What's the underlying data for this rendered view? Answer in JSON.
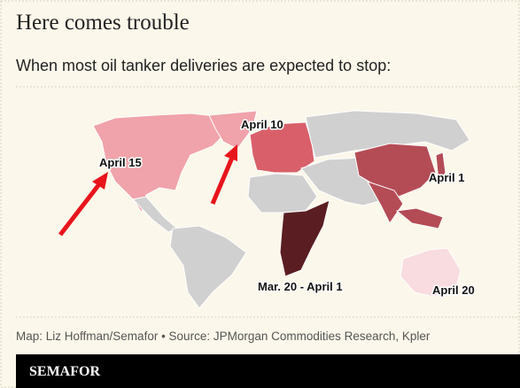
{
  "header": {
    "title": "Here comes trouble",
    "subtitle": "When most oil tanker deliveries are expected to stop:"
  },
  "map": {
    "labels": [
      "April 15",
      "April 10",
      "April 1",
      "Mar. 20 - April 1",
      "April 20"
    ]
  },
  "footer": {
    "source": "Map: Liz Hoffman/Semafor • Source: JPMorgan Commodities Research, Kpler",
    "brand": "SEMAFOR"
  }
}
